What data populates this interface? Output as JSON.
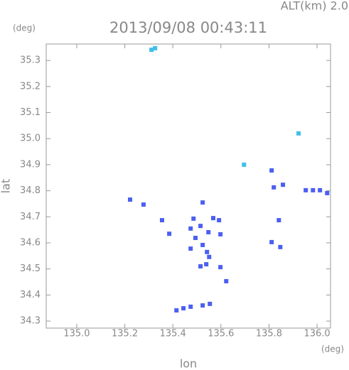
{
  "chart_data": {
    "type": "scatter",
    "title": "2013/09/08 00:43:11",
    "subtitle": "ALT(km) 2.0",
    "x_label": "lon",
    "y_label": "lat",
    "x_unit": "(deg)",
    "y_unit": "(deg)",
    "xlim": [
      134.873,
      136.056
    ],
    "ylim": [
      34.273,
      35.363
    ],
    "xticks": [
      {
        "value": 135,
        "label": "135.0"
      },
      135.2,
      135.4,
      135.6,
      135.8,
      {
        "value": 136,
        "label": "136.0"
      }
    ],
    "yticks": [
      34.3,
      34.4,
      34.5,
      34.6,
      34.7,
      34.8,
      34.9,
      {
        "value": 35,
        "label": "35.0"
      },
      35.1,
      35.2,
      35.3
    ],
    "series": [
      {
        "color": "#40c0e8",
        "x": [
          135.311,
          135.326,
          135.923,
          135.696
        ],
        "values": [
          35.341,
          35.347,
          35.02,
          34.9
        ]
      },
      {
        "color": "#4b5ff0",
        "x": [
          135.811,
          135.82,
          135.858,
          135.953,
          135.983,
          136.012,
          136.042,
          135.222,
          135.278,
          135.524,
          135.355,
          135.385,
          135.486,
          135.474,
          135.494,
          135.515,
          135.568,
          135.592,
          135.548,
          135.524,
          135.542,
          135.474,
          135.551,
          135.515,
          135.539,
          135.598,
          135.598,
          135.811,
          135.847,
          135.841,
          135.622,
          135.415,
          135.444,
          135.474,
          135.524,
          135.554
        ],
        "values": [
          34.878,
          34.813,
          34.823,
          34.802,
          34.802,
          34.802,
          34.791,
          34.766,
          34.747,
          34.755,
          34.687,
          34.635,
          34.693,
          34.655,
          34.619,
          34.665,
          34.695,
          34.687,
          34.641,
          34.592,
          34.565,
          34.578,
          34.546,
          34.51,
          34.518,
          34.633,
          34.507,
          34.603,
          34.584,
          34.687,
          34.453,
          34.341,
          34.349,
          34.355,
          34.36,
          34.366
        ]
      }
    ]
  }
}
